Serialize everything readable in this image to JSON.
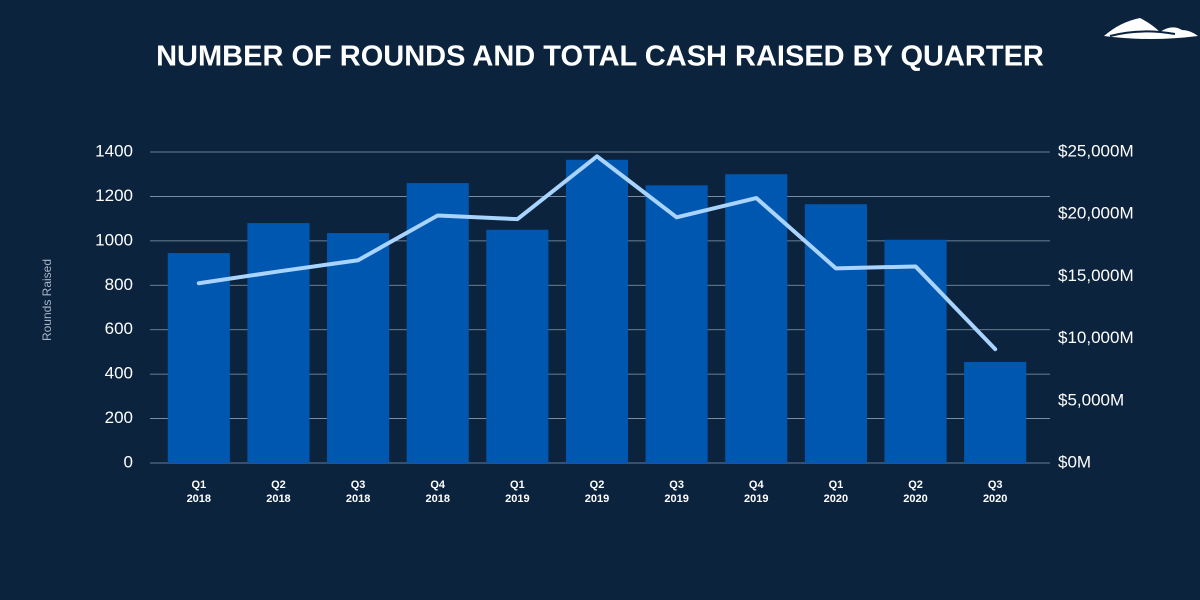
{
  "chart_data": {
    "type": "bar",
    "title": "NUMBER OF ROUNDS AND TOTAL CASH RAISED BY QUARTER",
    "y_label": "Rounds Raised",
    "categories": [
      "Q1 2018",
      "Q2 2018",
      "Q3 2018",
      "Q4 2018",
      "Q1 2019",
      "Q2 2019",
      "Q3 2019",
      "Q4 2019",
      "Q1 2020",
      "Q2 2020",
      "Q3 2020"
    ],
    "series": [
      {
        "type": "bar",
        "color": "#0057b0",
        "values": [
          945,
          1080,
          1035,
          1260,
          1050,
          1365,
          1250,
          1300,
          1165,
          1005,
          455
        ]
      },
      {
        "type": "line",
        "axis": "y2",
        "color": "#a9d4ff",
        "values": [
          14450,
          15400,
          16300,
          19900,
          19600,
          24650,
          19750,
          21300,
          15650,
          15800,
          9150
        ]
      }
    ],
    "ylim": [
      0,
      1400
    ],
    "yticks": [
      0,
      200,
      400,
      600,
      800,
      1000,
      1200,
      1400
    ],
    "y2lim": [
      0,
      25000
    ],
    "y2ticks": [
      {
        "value": 0,
        "label": "$0M"
      },
      {
        "value": 5000,
        "label": "$5,000M"
      },
      {
        "value": 10000,
        "label": "$10,000M"
      },
      {
        "value": 15000,
        "label": "$15,000M"
      },
      {
        "value": 20000,
        "label": "$20,000M"
      },
      {
        "value": 25000,
        "label": "$25,000M"
      }
    ],
    "grid": true
  }
}
